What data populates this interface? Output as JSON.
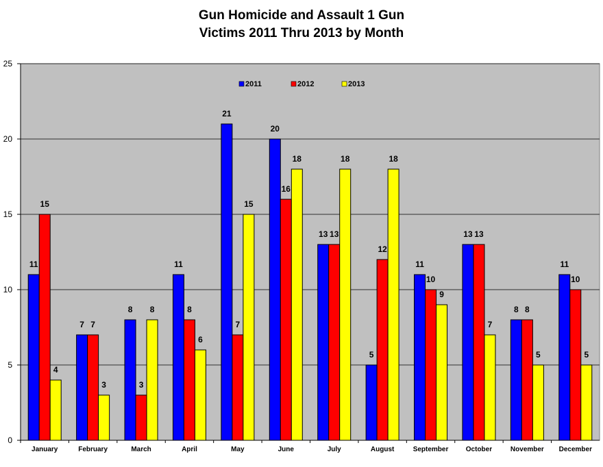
{
  "chart_data": {
    "type": "bar",
    "title_lines": [
      "Gun Homicide and Assault 1 Gun",
      "Victims 2011 Thru 2013 by Month"
    ],
    "xlabel": "",
    "ylabel": "",
    "ylim": [
      0,
      25
    ],
    "yticks": [
      0,
      5,
      10,
      15,
      20,
      25
    ],
    "grid": true,
    "legend_position": "top-center",
    "categories": [
      "January",
      "February",
      "March",
      "April",
      "May",
      "June",
      "July",
      "August",
      "September",
      "October",
      "November",
      "December"
    ],
    "series": [
      {
        "name": "2011",
        "color": "#0000ff",
        "values": [
          11,
          7,
          8,
          11,
          21,
          20,
          13,
          5,
          11,
          13,
          8,
          11
        ]
      },
      {
        "name": "2012",
        "color": "#ff0000",
        "values": [
          15,
          7,
          3,
          8,
          7,
          16,
          13,
          12,
          10,
          13,
          8,
          10
        ]
      },
      {
        "name": "2013",
        "color": "#ffff00",
        "values": [
          4,
          3,
          8,
          6,
          15,
          18,
          18,
          18,
          9,
          7,
          5,
          5
        ]
      }
    ],
    "plot_background": "#c0c0c0"
  }
}
